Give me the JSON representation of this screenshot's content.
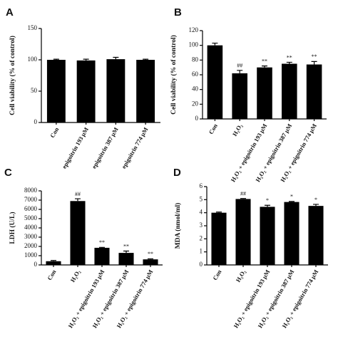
{
  "chart_data": [
    {
      "type": "bar",
      "label": "A",
      "y_label": "Cell viability (% of control)",
      "categories": [
        "Con",
        "epigoitrin 193 μM",
        "epigoitrin 387 μM",
        "epigoitrin 774 μM"
      ],
      "values": [
        100,
        99,
        101,
        100
      ],
      "errors": [
        1,
        2,
        3,
        1
      ],
      "color": "#000000",
      "ylim": [
        0,
        150
      ],
      "yticks": [
        0,
        50,
        100,
        150
      ]
    },
    {
      "type": "bar",
      "label": "B",
      "y_label": "Cell viability (% of control)",
      "categories": [
        "Con",
        "H₂O₂",
        "H₂O₂ + epigoitrin 193 μM",
        "H₂O₂ + epigoitrin 387 μM",
        "H₂O₂ + epigoitrin 774 μM"
      ],
      "values": [
        100,
        62,
        70,
        75,
        74
      ],
      "errors": [
        3,
        4,
        2,
        2,
        4
      ],
      "annotations": [
        null,
        "##",
        "**",
        "**",
        "**"
      ],
      "color": "#000000",
      "ylim": [
        0,
        120
      ],
      "yticks": [
        0,
        20,
        40,
        60,
        80,
        100,
        120
      ]
    },
    {
      "type": "bar",
      "label": "C",
      "y_label": "LDH (U/L)",
      "categories": [
        "Con",
        "H₂O₂",
        "H₂O₂ + epigoitrin 193 μM",
        "H₂O₂ + epigoitrin 387 μM",
        "H₂O₂ + epigoitrin 774 μM"
      ],
      "values": [
        400,
        6900,
        1850,
        1300,
        600
      ],
      "errors": [
        80,
        250,
        50,
        200,
        60
      ],
      "annotations": [
        null,
        "##",
        "**",
        "**",
        "**"
      ],
      "color": "#000000",
      "ylim": [
        0,
        8000
      ],
      "yticks": [
        0,
        1000,
        2000,
        3000,
        4000,
        5000,
        6000,
        7000,
        8000
      ]
    },
    {
      "type": "bar",
      "label": "D",
      "y_label": "MDA (nmol/ml)",
      "categories": [
        "Con",
        "H₂O₂",
        "H₂O₂ + epigoitrin 193 μM",
        "H₂O₂ + epigoitrin 387 μM",
        "H₂O₂ + epigoitrin 774 μM"
      ],
      "values": [
        4.0,
        5.05,
        4.45,
        4.82,
        4.52
      ],
      "errors": [
        0.05,
        0.04,
        0.12,
        0.04,
        0.12
      ],
      "annotations": [
        null,
        "##",
        "*",
        "*",
        "*"
      ],
      "color": "#000000",
      "ylim": [
        0,
        6
      ],
      "yticks": [
        0,
        1,
        2,
        3,
        4,
        5,
        6
      ]
    }
  ]
}
